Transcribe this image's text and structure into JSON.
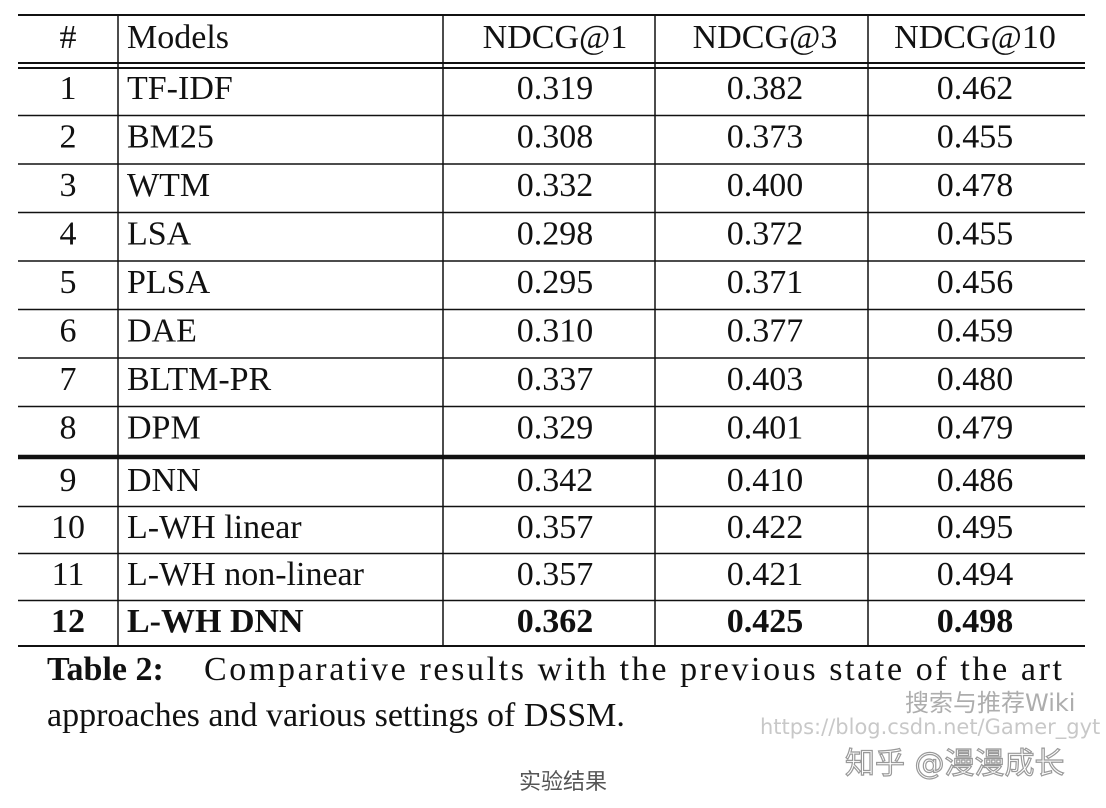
{
  "table": {
    "header": [
      "#",
      "Models",
      "NDCG@1",
      "NDCG@3",
      "NDCG@10"
    ],
    "rows": [
      [
        "1",
        "TF-IDF",
        "0.319",
        "0.382",
        "0.462"
      ],
      [
        "2",
        "BM25",
        "0.308",
        "0.373",
        "0.455"
      ],
      [
        "3",
        "WTM",
        "0.332",
        "0.400",
        "0.478"
      ],
      [
        "4",
        "LSA",
        "0.298",
        "0.372",
        "0.455"
      ],
      [
        "5",
        "PLSA",
        "0.295",
        "0.371",
        "0.456"
      ],
      [
        "6",
        "DAE",
        "0.310",
        "0.377",
        "0.459"
      ],
      [
        "7",
        "BLTM-PR",
        "0.337",
        "0.403",
        "0.480"
      ],
      [
        "8",
        "DPM",
        "0.329",
        "0.401",
        "0.479"
      ],
      [
        "9",
        "DNN",
        "0.342",
        "0.410",
        "0.486"
      ],
      [
        "10",
        "L-WH linear",
        "0.357",
        "0.422",
        "0.495"
      ],
      [
        "11",
        "L-WH non-linear",
        "0.357",
        "0.421",
        "0.494"
      ],
      [
        "12",
        "L-WH DNN",
        "0.362",
        "0.425",
        "0.498"
      ]
    ],
    "bold_rows": [
      11
    ]
  },
  "caption": {
    "label": "Table 2:",
    "lines": [
      "Comparative results with the previous state of the art",
      "approaches and various settings of DSSM."
    ]
  },
  "watermarks": [
    "搜索与推荐Wiki",
    "https://blog.csdn.net/Gamer_gyt",
    "知乎 @漫漫成长"
  ],
  "figure_caption": "实验结果"
}
